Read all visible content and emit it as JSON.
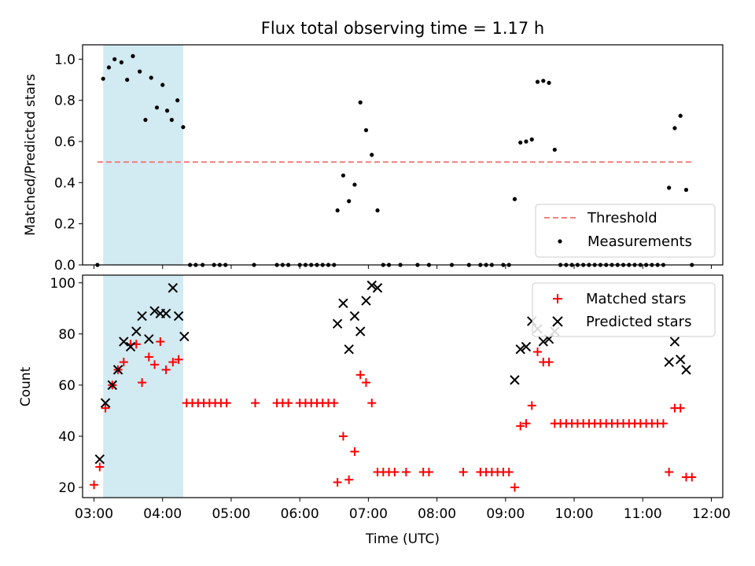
{
  "chart_data": [
    {
      "type": "scatter",
      "title": "Flux total observing time = 1.17 h",
      "ylabel": "Matched/Predicted stars",
      "xlabel": "",
      "xlim": [
        "02:50",
        "12:10"
      ],
      "ylim": [
        0,
        1.07
      ],
      "yticks": [
        "0.0",
        "0.2",
        "0.4",
        "0.6",
        "0.8",
        "1.0"
      ],
      "shaded_region": {
        "x": [
          "03:08",
          "04:18"
        ],
        "color": "#add8e6"
      },
      "threshold": {
        "name": "Threshold",
        "y": 0.5,
        "x": [
          "03:03",
          "11:43"
        ],
        "color": "#f08080",
        "style": "dashed"
      },
      "legend": [
        "Threshold",
        "Measurements"
      ],
      "legend_position": "lower-right",
      "series": [
        {
          "name": "Measurements",
          "color": "#000000",
          "marker": "dot",
          "points": [
            [
              "03:03",
              0.0
            ],
            [
              "03:08",
              0.905
            ],
            [
              "03:13",
              0.96
            ],
            [
              "03:18",
              1.0
            ],
            [
              "03:24",
              0.985
            ],
            [
              "03:29",
              0.9
            ],
            [
              "03:34",
              1.015
            ],
            [
              "03:40",
              0.94
            ],
            [
              "03:45",
              0.705
            ],
            [
              "03:50",
              0.91
            ],
            [
              "03:55",
              0.765
            ],
            [
              "04:00",
              0.875
            ],
            [
              "04:04",
              0.75
            ],
            [
              "04:08",
              0.705
            ],
            [
              "04:13",
              0.8
            ],
            [
              "04:18",
              0.67
            ],
            [
              "04:24",
              0.0
            ],
            [
              "04:29",
              0.0
            ],
            [
              "04:35",
              0.0
            ],
            [
              "04:45",
              0.0
            ],
            [
              "04:50",
              0.0
            ],
            [
              "04:55",
              0.0
            ],
            [
              "05:20",
              0.0
            ],
            [
              "05:40",
              0.0
            ],
            [
              "05:45",
              0.0
            ],
            [
              "05:50",
              0.0
            ],
            [
              "06:00",
              0.0
            ],
            [
              "06:05",
              0.0
            ],
            [
              "06:10",
              0.0
            ],
            [
              "06:15",
              0.0
            ],
            [
              "06:20",
              0.0
            ],
            [
              "06:25",
              0.0
            ],
            [
              "06:30",
              0.0
            ],
            [
              "06:33",
              0.265
            ],
            [
              "06:38",
              0.435
            ],
            [
              "06:43",
              0.31
            ],
            [
              "06:48",
              0.39
            ],
            [
              "06:53",
              0.79
            ],
            [
              "06:58",
              0.655
            ],
            [
              "07:03",
              0.535
            ],
            [
              "07:08",
              0.265
            ],
            [
              "07:13",
              0.0
            ],
            [
              "07:18",
              0.0
            ],
            [
              "07:28",
              0.0
            ],
            [
              "07:43",
              0.0
            ],
            [
              "07:53",
              0.0
            ],
            [
              "08:13",
              0.0
            ],
            [
              "08:28",
              0.0
            ],
            [
              "08:38",
              0.0
            ],
            [
              "08:43",
              0.0
            ],
            [
              "08:48",
              0.0
            ],
            [
              "08:58",
              0.0
            ],
            [
              "09:03",
              0.0
            ],
            [
              "09:08",
              0.32
            ],
            [
              "09:13",
              0.595
            ],
            [
              "09:18",
              0.6
            ],
            [
              "09:23",
              0.61
            ],
            [
              "09:28",
              0.89
            ],
            [
              "09:33",
              0.895
            ],
            [
              "09:38",
              0.885
            ],
            [
              "09:43",
              0.56
            ],
            [
              "09:48",
              0.0
            ],
            [
              "09:53",
              0.0
            ],
            [
              "09:58",
              0.0
            ],
            [
              "10:03",
              0.0
            ],
            [
              "10:08",
              0.0
            ],
            [
              "10:13",
              0.0
            ],
            [
              "10:18",
              0.0
            ],
            [
              "10:23",
              0.0
            ],
            [
              "10:28",
              0.0
            ],
            [
              "10:33",
              0.0
            ],
            [
              "10:38",
              0.0
            ],
            [
              "10:43",
              0.0
            ],
            [
              "10:48",
              0.0
            ],
            [
              "10:53",
              0.0
            ],
            [
              "10:58",
              0.0
            ],
            [
              "11:03",
              0.0
            ],
            [
              "11:08",
              0.0
            ],
            [
              "11:13",
              0.0
            ],
            [
              "11:18",
              0.0
            ],
            [
              "11:23",
              0.375
            ],
            [
              "11:28",
              0.665
            ],
            [
              "11:33",
              0.725
            ],
            [
              "11:38",
              0.365
            ],
            [
              "11:43",
              0.0
            ]
          ]
        }
      ]
    },
    {
      "type": "scatter",
      "title": "",
      "ylabel": "Count",
      "xlabel": "Time (UTC)",
      "xlim": [
        "02:50",
        "12:10"
      ],
      "ylim": [
        16,
        103
      ],
      "yticks": [
        "20",
        "40",
        "60",
        "80",
        "100"
      ],
      "xticks": [
        "03:00",
        "04:00",
        "05:00",
        "06:00",
        "07:00",
        "08:00",
        "09:00",
        "10:00",
        "11:00",
        "12:00"
      ],
      "shaded_region": {
        "x": [
          "03:08",
          "04:18"
        ],
        "color": "#add8e6"
      },
      "legend": [
        "Matched stars",
        "Predicted stars"
      ],
      "legend_position": "top-right",
      "series": [
        {
          "name": "Matched stars",
          "color": "#ff0000",
          "marker": "plus",
          "points": [
            [
              "03:00",
              21
            ],
            [
              "03:05",
              28
            ],
            [
              "03:10",
              51
            ],
            [
              "03:16",
              60
            ],
            [
              "03:21",
              66
            ],
            [
              "03:26",
              69
            ],
            [
              "03:32",
              76
            ],
            [
              "03:37",
              76
            ],
            [
              "03:42",
              61
            ],
            [
              "03:48",
              71
            ],
            [
              "03:53",
              68
            ],
            [
              "03:58",
              77
            ],
            [
              "04:03",
              66
            ],
            [
              "04:09",
              69
            ],
            [
              "04:14",
              70
            ],
            [
              "04:21",
              53
            ],
            [
              "04:26",
              53
            ],
            [
              "04:31",
              53
            ],
            [
              "04:36",
              53
            ],
            [
              "04:41",
              53
            ],
            [
              "04:46",
              53
            ],
            [
              "04:51",
              53
            ],
            [
              "04:56",
              53
            ],
            [
              "05:21",
              53
            ],
            [
              "05:40",
              53
            ],
            [
              "05:45",
              53
            ],
            [
              "05:50",
              53
            ],
            [
              "06:00",
              53
            ],
            [
              "06:05",
              53
            ],
            [
              "06:10",
              53
            ],
            [
              "06:15",
              53
            ],
            [
              "06:20",
              53
            ],
            [
              "06:25",
              53
            ],
            [
              "06:30",
              53
            ],
            [
              "06:33",
              22
            ],
            [
              "06:38",
              40
            ],
            [
              "06:43",
              23
            ],
            [
              "06:48",
              34
            ],
            [
              "06:53",
              64
            ],
            [
              "06:58",
              61
            ],
            [
              "07:03",
              53
            ],
            [
              "07:08",
              26
            ],
            [
              "07:13",
              26
            ],
            [
              "07:18",
              26
            ],
            [
              "07:23",
              26
            ],
            [
              "07:33",
              26
            ],
            [
              "07:48",
              26
            ],
            [
              "07:53",
              26
            ],
            [
              "08:23",
              26
            ],
            [
              "08:38",
              26
            ],
            [
              "08:43",
              26
            ],
            [
              "08:48",
              26
            ],
            [
              "08:53",
              26
            ],
            [
              "08:58",
              26
            ],
            [
              "09:03",
              26
            ],
            [
              "09:08",
              20
            ],
            [
              "09:13",
              44
            ],
            [
              "09:18",
              45
            ],
            [
              "09:23",
              52
            ],
            [
              "09:28",
              73
            ],
            [
              "09:33",
              69
            ],
            [
              "09:38",
              69
            ],
            [
              "09:43",
              45
            ],
            [
              "09:48",
              45
            ],
            [
              "09:53",
              45
            ],
            [
              "09:58",
              45
            ],
            [
              "10:03",
              45
            ],
            [
              "10:08",
              45
            ],
            [
              "10:13",
              45
            ],
            [
              "10:18",
              45
            ],
            [
              "10:23",
              45
            ],
            [
              "10:28",
              45
            ],
            [
              "10:33",
              45
            ],
            [
              "10:38",
              45
            ],
            [
              "10:43",
              45
            ],
            [
              "10:48",
              45
            ],
            [
              "10:53",
              45
            ],
            [
              "10:58",
              45
            ],
            [
              "11:03",
              45
            ],
            [
              "11:08",
              45
            ],
            [
              "11:13",
              45
            ],
            [
              "11:18",
              45
            ],
            [
              "11:23",
              26
            ],
            [
              "11:28",
              51
            ],
            [
              "11:33",
              51
            ],
            [
              "11:38",
              24
            ],
            [
              "11:43",
              24
            ]
          ]
        },
        {
          "name": "Predicted stars",
          "color": "#000000",
          "marker": "x",
          "points": [
            [
              "03:05",
              31
            ],
            [
              "03:10",
              53
            ],
            [
              "03:16",
              60
            ],
            [
              "03:21",
              66
            ],
            [
              "03:26",
              77
            ],
            [
              "03:32",
              75
            ],
            [
              "03:37",
              81
            ],
            [
              "03:42",
              87
            ],
            [
              "03:48",
              78
            ],
            [
              "03:53",
              89
            ],
            [
              "03:58",
              88
            ],
            [
              "04:03",
              88
            ],
            [
              "04:09",
              98
            ],
            [
              "04:14",
              87
            ],
            [
              "04:19",
              79
            ],
            [
              "06:33",
              84
            ],
            [
              "06:38",
              92
            ],
            [
              "06:43",
              74
            ],
            [
              "06:48",
              87
            ],
            [
              "06:53",
              81
            ],
            [
              "06:58",
              93
            ],
            [
              "07:03",
              99
            ],
            [
              "07:08",
              98
            ],
            [
              "09:08",
              62
            ],
            [
              "09:13",
              74
            ],
            [
              "09:18",
              75
            ],
            [
              "09:23",
              85
            ],
            [
              "09:28",
              82
            ],
            [
              "09:33",
              77
            ],
            [
              "09:38",
              78
            ],
            [
              "09:43",
              81
            ],
            [
              "11:23",
              69
            ],
            [
              "11:28",
              77
            ],
            [
              "11:33",
              70
            ],
            [
              "11:38",
              66
            ]
          ]
        }
      ]
    }
  ]
}
